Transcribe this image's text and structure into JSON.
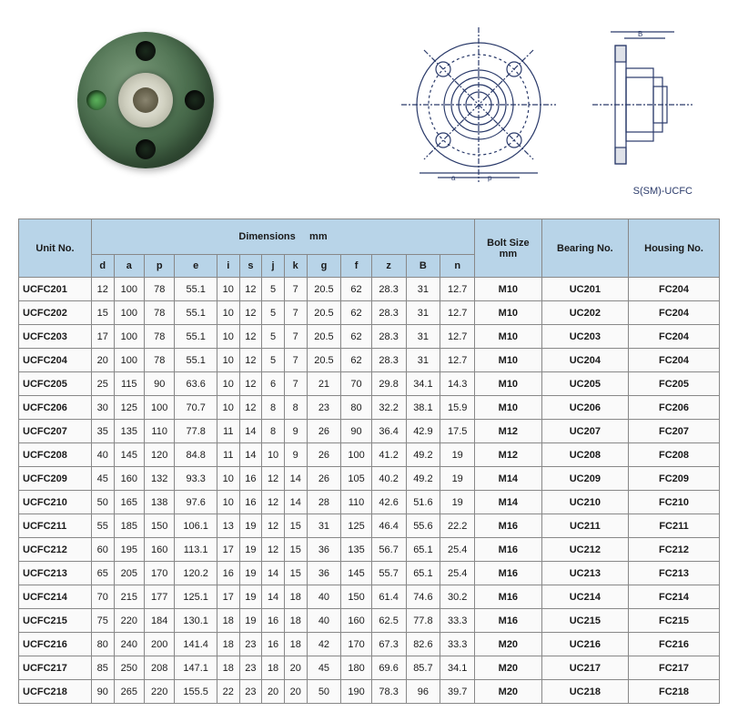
{
  "diagram_label": "S(SM)-UCFC",
  "headers": {
    "unit_no": "Unit No.",
    "dimensions": "Dimensions",
    "dim_unit": "mm",
    "bolt_size": "Bolt Size",
    "bolt_unit": "mm",
    "bearing_no": "Bearing No.",
    "housing_no": "Housing No.",
    "cols": [
      "d",
      "a",
      "p",
      "e",
      "i",
      "s",
      "j",
      "k",
      "g",
      "f",
      "z",
      "B",
      "n"
    ]
  },
  "rows": [
    {
      "unit": "UCFC201",
      "d": "12",
      "a": "100",
      "p": "78",
      "e": "55.1",
      "i": "10",
      "s": "12",
      "j": "5",
      "k": "7",
      "g": "20.5",
      "f": "62",
      "z": "28.3",
      "B": "31",
      "n": "12.7",
      "bolt": "M10",
      "bearing": "UC201",
      "housing": "FC204"
    },
    {
      "unit": "UCFC202",
      "d": "15",
      "a": "100",
      "p": "78",
      "e": "55.1",
      "i": "10",
      "s": "12",
      "j": "5",
      "k": "7",
      "g": "20.5",
      "f": "62",
      "z": "28.3",
      "B": "31",
      "n": "12.7",
      "bolt": "M10",
      "bearing": "UC202",
      "housing": "FC204"
    },
    {
      "unit": "UCFC203",
      "d": "17",
      "a": "100",
      "p": "78",
      "e": "55.1",
      "i": "10",
      "s": "12",
      "j": "5",
      "k": "7",
      "g": "20.5",
      "f": "62",
      "z": "28.3",
      "B": "31",
      "n": "12.7",
      "bolt": "M10",
      "bearing": "UC203",
      "housing": "FC204"
    },
    {
      "unit": "UCFC204",
      "d": "20",
      "a": "100",
      "p": "78",
      "e": "55.1",
      "i": "10",
      "s": "12",
      "j": "5",
      "k": "7",
      "g": "20.5",
      "f": "62",
      "z": "28.3",
      "B": "31",
      "n": "12.7",
      "bolt": "M10",
      "bearing": "UC204",
      "housing": "FC204"
    },
    {
      "unit": "UCFC205",
      "d": "25",
      "a": "115",
      "p": "90",
      "e": "63.6",
      "i": "10",
      "s": "12",
      "j": "6",
      "k": "7",
      "g": "21",
      "f": "70",
      "z": "29.8",
      "B": "34.1",
      "n": "14.3",
      "bolt": "M10",
      "bearing": "UC205",
      "housing": "FC205"
    },
    {
      "unit": "UCFC206",
      "d": "30",
      "a": "125",
      "p": "100",
      "e": "70.7",
      "i": "10",
      "s": "12",
      "j": "8",
      "k": "8",
      "g": "23",
      "f": "80",
      "z": "32.2",
      "B": "38.1",
      "n": "15.9",
      "bolt": "M10",
      "bearing": "UC206",
      "housing": "FC206"
    },
    {
      "unit": "UCFC207",
      "d": "35",
      "a": "135",
      "p": "110",
      "e": "77.8",
      "i": "11",
      "s": "14",
      "j": "8",
      "k": "9",
      "g": "26",
      "f": "90",
      "z": "36.4",
      "B": "42.9",
      "n": "17.5",
      "bolt": "M12",
      "bearing": "UC207",
      "housing": "FC207"
    },
    {
      "unit": "UCFC208",
      "d": "40",
      "a": "145",
      "p": "120",
      "e": "84.8",
      "i": "11",
      "s": "14",
      "j": "10",
      "k": "9",
      "g": "26",
      "f": "100",
      "z": "41.2",
      "B": "49.2",
      "n": "19",
      "bolt": "M12",
      "bearing": "UC208",
      "housing": "FC208"
    },
    {
      "unit": "UCFC209",
      "d": "45",
      "a": "160",
      "p": "132",
      "e": "93.3",
      "i": "10",
      "s": "16",
      "j": "12",
      "k": "14",
      "g": "26",
      "f": "105",
      "z": "40.2",
      "B": "49.2",
      "n": "19",
      "bolt": "M14",
      "bearing": "UC209",
      "housing": "FC209"
    },
    {
      "unit": "UCFC210",
      "d": "50",
      "a": "165",
      "p": "138",
      "e": "97.6",
      "i": "10",
      "s": "16",
      "j": "12",
      "k": "14",
      "g": "28",
      "f": "110",
      "z": "42.6",
      "B": "51.6",
      "n": "19",
      "bolt": "M14",
      "bearing": "UC210",
      "housing": "FC210"
    },
    {
      "unit": "UCFC211",
      "d": "55",
      "a": "185",
      "p": "150",
      "e": "106.1",
      "i": "13",
      "s": "19",
      "j": "12",
      "k": "15",
      "g": "31",
      "f": "125",
      "z": "46.4",
      "B": "55.6",
      "n": "22.2",
      "bolt": "M16",
      "bearing": "UC211",
      "housing": "FC211"
    },
    {
      "unit": "UCFC212",
      "d": "60",
      "a": "195",
      "p": "160",
      "e": "113.1",
      "i": "17",
      "s": "19",
      "j": "12",
      "k": "15",
      "g": "36",
      "f": "135",
      "z": "56.7",
      "B": "65.1",
      "n": "25.4",
      "bolt": "M16",
      "bearing": "UC212",
      "housing": "FC212"
    },
    {
      "unit": "UCFC213",
      "d": "65",
      "a": "205",
      "p": "170",
      "e": "120.2",
      "i": "16",
      "s": "19",
      "j": "14",
      "k": "15",
      "g": "36",
      "f": "145",
      "z": "55.7",
      "B": "65.1",
      "n": "25.4",
      "bolt": "M16",
      "bearing": "UC213",
      "housing": "FC213"
    },
    {
      "unit": "UCFC214",
      "d": "70",
      "a": "215",
      "p": "177",
      "e": "125.1",
      "i": "17",
      "s": "19",
      "j": "14",
      "k": "18",
      "g": "40",
      "f": "150",
      "z": "61.4",
      "B": "74.6",
      "n": "30.2",
      "bolt": "M16",
      "bearing": "UC214",
      "housing": "FC214"
    },
    {
      "unit": "UCFC215",
      "d": "75",
      "a": "220",
      "p": "184",
      "e": "130.1",
      "i": "18",
      "s": "19",
      "j": "16",
      "k": "18",
      "g": "40",
      "f": "160",
      "z": "62.5",
      "B": "77.8",
      "n": "33.3",
      "bolt": "M16",
      "bearing": "UC215",
      "housing": "FC215"
    },
    {
      "unit": "UCFC216",
      "d": "80",
      "a": "240",
      "p": "200",
      "e": "141.4",
      "i": "18",
      "s": "23",
      "j": "16",
      "k": "18",
      "g": "42",
      "f": "170",
      "z": "67.3",
      "B": "82.6",
      "n": "33.3",
      "bolt": "M20",
      "bearing": "UC216",
      "housing": "FC216"
    },
    {
      "unit": "UCFC217",
      "d": "85",
      "a": "250",
      "p": "208",
      "e": "147.1",
      "i": "18",
      "s": "23",
      "j": "18",
      "k": "20",
      "g": "45",
      "f": "180",
      "z": "69.6",
      "B": "85.7",
      "n": "34.1",
      "bolt": "M20",
      "bearing": "UC217",
      "housing": "FC217"
    },
    {
      "unit": "UCFC218",
      "d": "90",
      "a": "265",
      "p": "220",
      "e": "155.5",
      "i": "22",
      "s": "23",
      "j": "20",
      "k": "20",
      "g": "50",
      "f": "190",
      "z": "78.3",
      "B": "96",
      "n": "39.7",
      "bolt": "M20",
      "bearing": "UC218",
      "housing": "FC218"
    }
  ],
  "styling": {
    "header_bg": "#b8d4e8",
    "cell_bg": "#fafafa",
    "border_color": "#888888",
    "font_size": 11,
    "diagram_stroke": "#2a3a6a"
  }
}
